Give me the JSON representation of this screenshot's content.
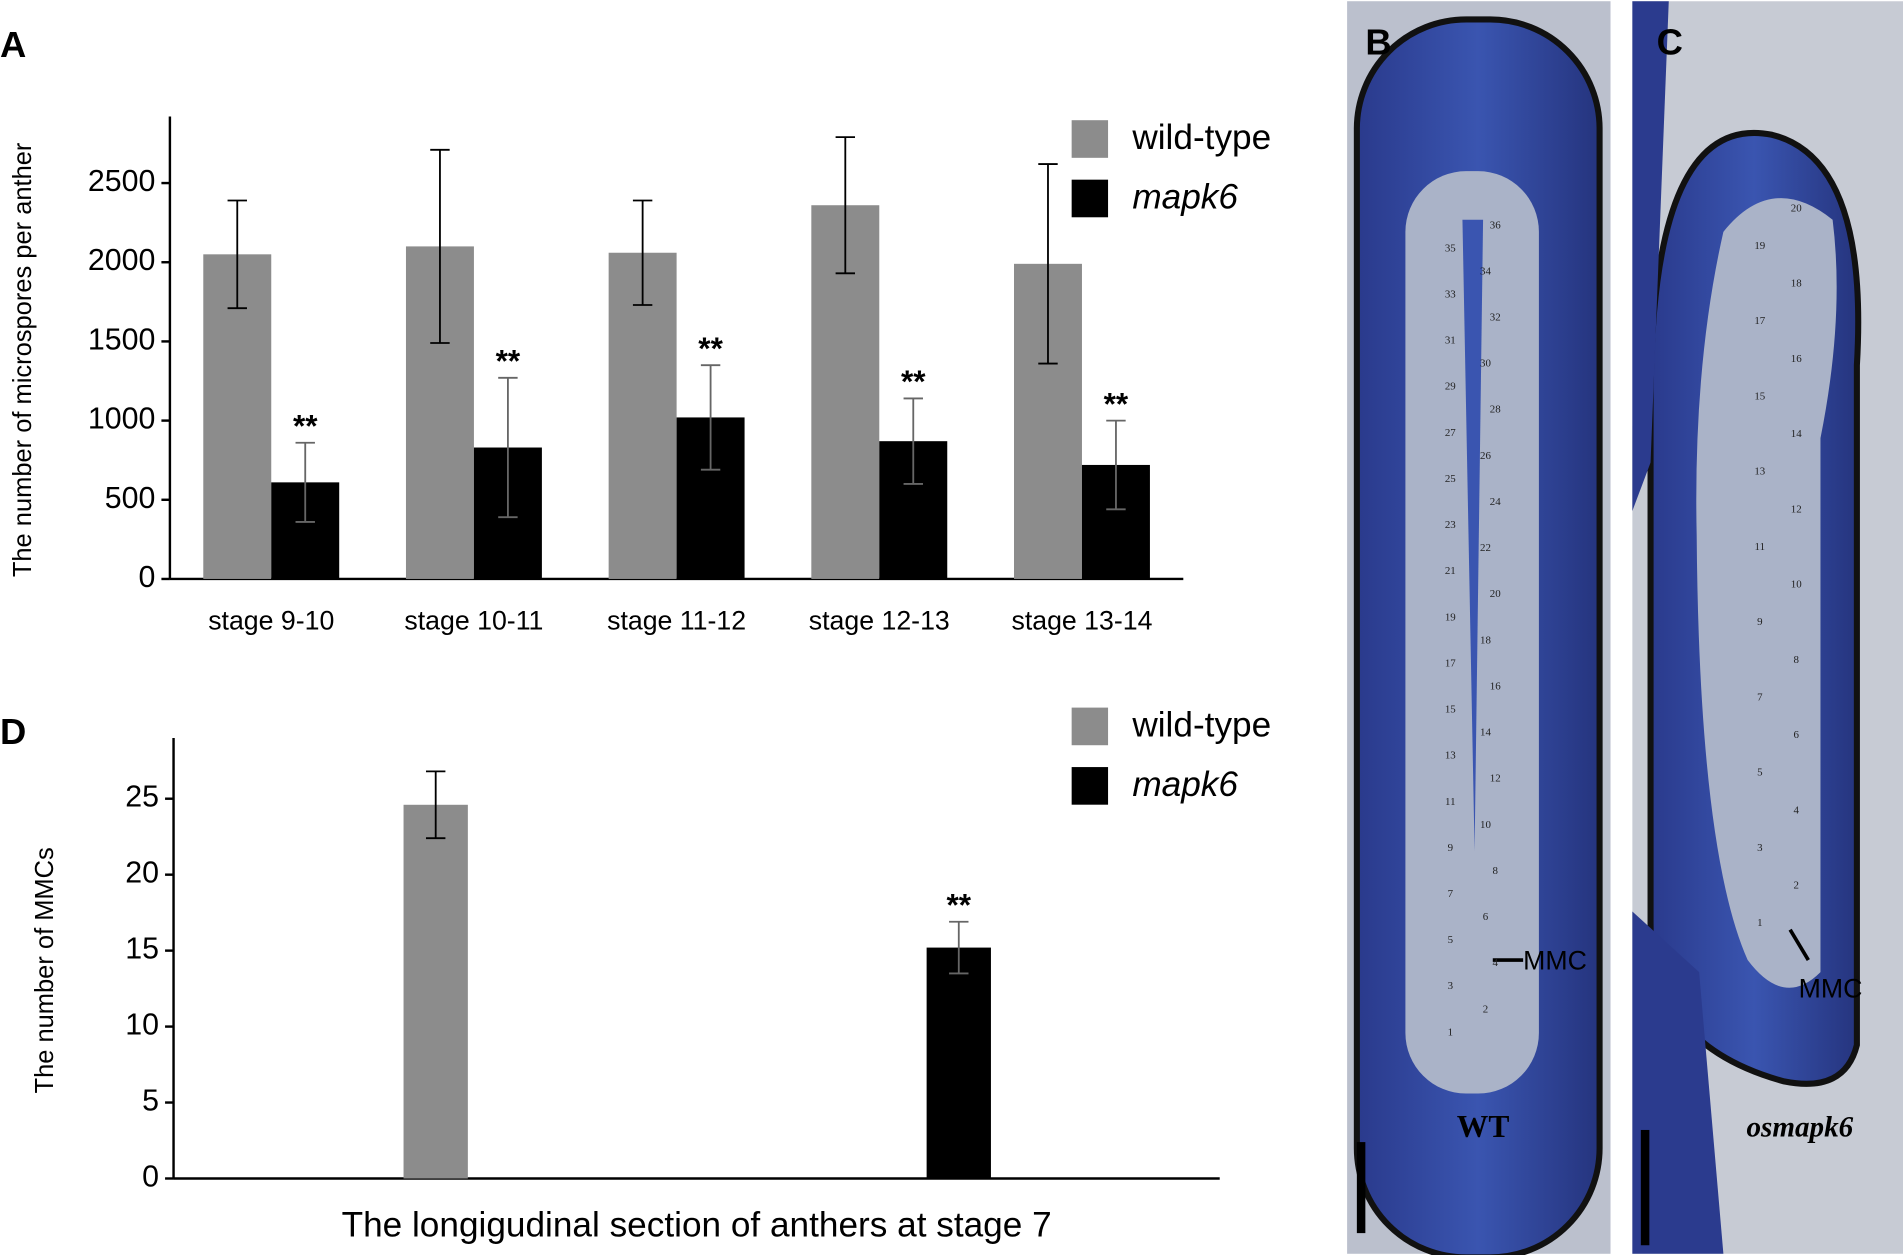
{
  "chart_data": [
    {
      "type": "bar",
      "panel": "A",
      "ylabel": "The number of microspores per anther",
      "categories": [
        "stage 9-10",
        "stage 10-11",
        "stage 11-12",
        "stage 12-13",
        "stage 13-14"
      ],
      "series": [
        {
          "name": "wild-type",
          "color": "#8c8c8c",
          "values": [
            2050,
            2100,
            2060,
            2360,
            1990
          ],
          "errors": [
            340,
            610,
            330,
            430,
            630
          ]
        },
        {
          "name": "mapk6",
          "color": "#000000",
          "values": [
            610,
            830,
            1020,
            870,
            720
          ],
          "errors": [
            250,
            440,
            330,
            270,
            280
          ],
          "annotations": [
            "**",
            "**",
            "**",
            "**",
            "**"
          ]
        }
      ],
      "ylim": [
        0,
        2920
      ],
      "yticks": [
        0,
        500,
        1000,
        1500,
        2000,
        2500
      ],
      "legend": "top-right"
    },
    {
      "type": "bar",
      "panel": "D",
      "ylabel": "The number of MMCs",
      "xlabel": "The longigudinal section of anthers at stage 7",
      "categories": [
        null
      ],
      "series": [
        {
          "name": "wild-type",
          "color": "#8c8c8c",
          "values": [
            24.6
          ],
          "errors": [
            2.2
          ]
        },
        {
          "name": "mapk6",
          "color": "#000000",
          "values": [
            15.2
          ],
          "errors": [
            1.7
          ],
          "annotations": [
            "**"
          ]
        }
      ],
      "ylim": [
        0,
        29
      ],
      "yticks": [
        0,
        5,
        10,
        15,
        20,
        25
      ],
      "legend": "top-right"
    }
  ],
  "micrographs": [
    {
      "panel": "B",
      "genotype": "WT",
      "arrow_label": "MMC",
      "cell_labels": [
        "1",
        "2",
        "3",
        "4",
        "5",
        "6",
        "7",
        "8",
        "9",
        "10",
        "11",
        "12",
        "13",
        "14",
        "15",
        "16",
        "17",
        "18",
        "19",
        "20",
        "21",
        "22",
        "23",
        "24",
        "25",
        "26",
        "27",
        "28",
        "29",
        "30",
        "31",
        "32",
        "33",
        "34",
        "35",
        "36"
      ]
    },
    {
      "panel": "C",
      "genotype": "osmapk6",
      "arrow_label": "MMC",
      "cell_labels": [
        "1",
        "2",
        "3",
        "4",
        "5",
        "6",
        "7",
        "8",
        "9",
        "10",
        "11",
        "12",
        "13",
        "14",
        "15",
        "16",
        "17",
        "18",
        "19",
        "20"
      ]
    }
  ]
}
